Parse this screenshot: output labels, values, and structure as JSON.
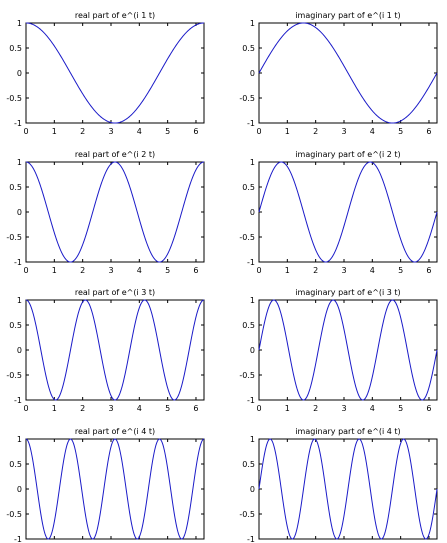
{
  "chart_data": [
    {
      "type": "line",
      "title": "real part of e^(i 1 t)",
      "n": 1,
      "part": "real",
      "xlim": [
        0,
        6.2832
      ],
      "ylim": [
        -1,
        1
      ],
      "xticks": [
        "0",
        "1",
        "2",
        "3",
        "4",
        "5",
        "6"
      ],
      "yticks": [
        "-1",
        "-0.5",
        "0",
        "0.5",
        "1"
      ],
      "series": [
        {
          "function": "cos(1 t)",
          "color": "#1b1bc8"
        }
      ]
    },
    {
      "type": "line",
      "title": "imaginary part of e^(i 1 t)",
      "n": 1,
      "part": "imag",
      "xlim": [
        0,
        6.2832
      ],
      "ylim": [
        -1,
        1
      ],
      "xticks": [
        "0",
        "1",
        "2",
        "3",
        "4",
        "5",
        "6"
      ],
      "yticks": [
        "-1",
        "-0.5",
        "0",
        "0.5",
        "1"
      ],
      "series": [
        {
          "function": "sin(1 t)",
          "color": "#1b1bc8"
        }
      ]
    },
    {
      "type": "line",
      "title": "real part of e^(i 2 t)",
      "n": 2,
      "part": "real",
      "xlim": [
        0,
        6.2832
      ],
      "ylim": [
        -1,
        1
      ],
      "xticks": [
        "0",
        "1",
        "2",
        "3",
        "4",
        "5",
        "6"
      ],
      "yticks": [
        "-1",
        "-0.5",
        "0",
        "0.5",
        "1"
      ],
      "series": [
        {
          "function": "cos(2 t)",
          "color": "#1b1bc8"
        }
      ]
    },
    {
      "type": "line",
      "title": "imaginary part of e^(i 2 t)",
      "n": 2,
      "part": "imag",
      "xlim": [
        0,
        6.2832
      ],
      "ylim": [
        -1,
        1
      ],
      "xticks": [
        "0",
        "1",
        "2",
        "3",
        "4",
        "5",
        "6"
      ],
      "yticks": [
        "-1",
        "-0.5",
        "0",
        "0.5",
        "1"
      ],
      "series": [
        {
          "function": "sin(2 t)",
          "color": "#1b1bc8"
        }
      ]
    },
    {
      "type": "line",
      "title": "real part of e^(i 3 t)",
      "n": 3,
      "part": "real",
      "xlim": [
        0,
        6.2832
      ],
      "ylim": [
        -1,
        1
      ],
      "xticks": [
        "0",
        "1",
        "2",
        "3",
        "4",
        "5",
        "6"
      ],
      "yticks": [
        "-1",
        "-0.5",
        "0",
        "0.5",
        "1"
      ],
      "series": [
        {
          "function": "cos(3 t)",
          "color": "#1b1bc8"
        }
      ]
    },
    {
      "type": "line",
      "title": "imaginary part of e^(i 3 t)",
      "n": 3,
      "part": "imag",
      "xlim": [
        0,
        6.2832
      ],
      "ylim": [
        -1,
        1
      ],
      "xticks": [
        "0",
        "1",
        "2",
        "3",
        "4",
        "5",
        "6"
      ],
      "yticks": [
        "-1",
        "-0.5",
        "0",
        "0.5",
        "1"
      ],
      "series": [
        {
          "function": "sin(3 t)",
          "color": "#1b1bc8"
        }
      ]
    },
    {
      "type": "line",
      "title": "real part of e^(i 4 t)",
      "n": 4,
      "part": "real",
      "xlim": [
        0,
        6.2832
      ],
      "ylim": [
        -1,
        1
      ],
      "xticks": [],
      "yticks": [
        "-1",
        "-0.5",
        "0",
        "0.5",
        "1"
      ],
      "series": [
        {
          "function": "cos(4 t)",
          "color": "#1b1bc8"
        }
      ]
    },
    {
      "type": "line",
      "title": "imaginary part of e^(i 4 t)",
      "n": 4,
      "part": "imag",
      "xlim": [
        0,
        6.2832
      ],
      "ylim": [
        -1,
        1
      ],
      "xticks": [],
      "yticks": [
        "-1",
        "-0.5",
        "0",
        "0.5",
        "1"
      ],
      "series": [
        {
          "function": "sin(4 t)",
          "color": "#1b1bc8"
        }
      ]
    }
  ]
}
